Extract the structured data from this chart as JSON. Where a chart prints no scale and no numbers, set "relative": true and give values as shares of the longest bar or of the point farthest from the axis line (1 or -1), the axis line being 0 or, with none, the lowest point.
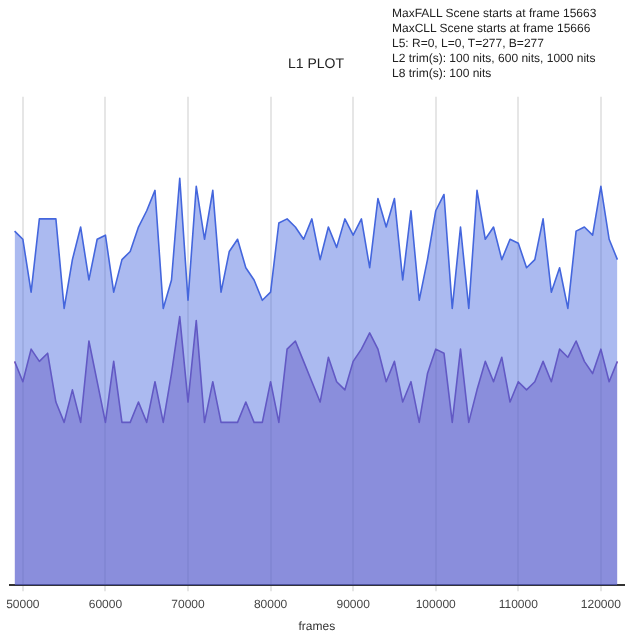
{
  "chart_data": {
    "type": "area",
    "title": "L1 PLOT",
    "xlabel": "frames",
    "relative": true,
    "grid": "x",
    "legend": false,
    "annotations": [
      "MaxFALL Scene starts at frame 15663",
      "MaxCLL Scene starts at frame 15666",
      "L5: R=0, L=0, T=277, B=277",
      "L2 trim(s): 100 nits, 600 nits, 1000 nits",
      "L8 trim(s): 100 nits"
    ],
    "xlim": [
      48400,
      122800
    ],
    "xticks": [
      50000,
      60000,
      70000,
      80000,
      90000,
      100000,
      110000,
      120000
    ],
    "x": [
      49000,
      50000,
      51000,
      52000,
      53000,
      54000,
      55000,
      56000,
      57000,
      58000,
      59000,
      60000,
      61000,
      62000,
      63000,
      64000,
      65000,
      66000,
      67000,
      68000,
      69000,
      70000,
      71000,
      72000,
      73000,
      74000,
      75000,
      76000,
      77000,
      78000,
      79000,
      80000,
      81000,
      82000,
      83000,
      84000,
      85000,
      86000,
      87000,
      88000,
      89000,
      90000,
      91000,
      92000,
      93000,
      94000,
      95000,
      96000,
      97000,
      98000,
      99000,
      100000,
      101000,
      102000,
      103000,
      104000,
      105000,
      106000,
      107000,
      108000,
      109000,
      110000,
      111000,
      112000,
      113000,
      114000,
      115000,
      116000,
      117000,
      118000,
      119000,
      120000,
      121000,
      122000
    ],
    "series": [
      {
        "color": "#4466dd",
        "values": [
          0.87,
          0.85,
          0.72,
          0.9,
          0.9,
          0.9,
          0.68,
          0.8,
          0.88,
          0.75,
          0.85,
          0.86,
          0.72,
          0.8,
          0.82,
          0.88,
          0.92,
          0.97,
          0.68,
          0.75,
          1.0,
          0.7,
          0.98,
          0.85,
          0.97,
          0.72,
          0.82,
          0.85,
          0.78,
          0.75,
          0.7,
          0.72,
          0.89,
          0.9,
          0.88,
          0.85,
          0.9,
          0.8,
          0.88,
          0.83,
          0.9,
          0.86,
          0.9,
          0.78,
          0.95,
          0.88,
          0.95,
          0.75,
          0.92,
          0.7,
          0.8,
          0.92,
          0.96,
          0.68,
          0.88,
          0.68,
          0.97,
          0.85,
          0.88,
          0.8,
          0.85,
          0.84,
          0.78,
          0.8,
          0.9,
          0.72,
          0.78,
          0.68,
          0.87,
          0.88,
          0.86,
          0.98,
          0.85,
          0.8
        ]
      },
      {
        "color": "#7a4fb0",
        "values": [
          0.55,
          0.5,
          0.58,
          0.55,
          0.57,
          0.45,
          0.4,
          0.48,
          0.4,
          0.6,
          0.5,
          0.4,
          0.55,
          0.4,
          0.4,
          0.45,
          0.4,
          0.5,
          0.4,
          0.52,
          0.66,
          0.45,
          0.65,
          0.4,
          0.5,
          0.4,
          0.4,
          0.4,
          0.45,
          0.4,
          0.4,
          0.5,
          0.4,
          0.58,
          0.6,
          0.55,
          0.5,
          0.45,
          0.56,
          0.5,
          0.48,
          0.55,
          0.58,
          0.62,
          0.58,
          0.5,
          0.55,
          0.45,
          0.5,
          0.4,
          0.52,
          0.58,
          0.57,
          0.4,
          0.58,
          0.4,
          0.48,
          0.55,
          0.5,
          0.56,
          0.45,
          0.5,
          0.48,
          0.5,
          0.55,
          0.5,
          0.58,
          0.56,
          0.6,
          0.55,
          0.52,
          0.58,
          0.5,
          0.55
        ]
      }
    ]
  }
}
